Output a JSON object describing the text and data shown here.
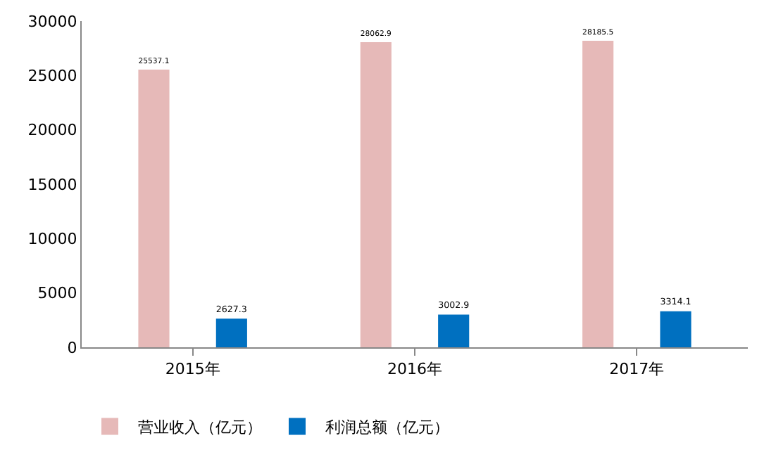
{
  "chart_data": {
    "type": "bar",
    "categories": [
      "2015年",
      "2016年",
      "2017年"
    ],
    "series": [
      {
        "name": "营业收入（亿元）",
        "color": "#e6b9b8",
        "values": [
          25537.1,
          28062.9,
          28185.5
        ]
      },
      {
        "name": "利润总额（亿元）",
        "color": "#0070c0",
        "values": [
          2627.3,
          3002.9,
          3314.1
        ]
      }
    ],
    "ylim": [
      0,
      30000
    ],
    "yticks": [
      0,
      5000,
      10000,
      15000,
      20000,
      25000,
      30000
    ],
    "grid": false,
    "legend": "bottom left",
    "data_labels": true
  }
}
